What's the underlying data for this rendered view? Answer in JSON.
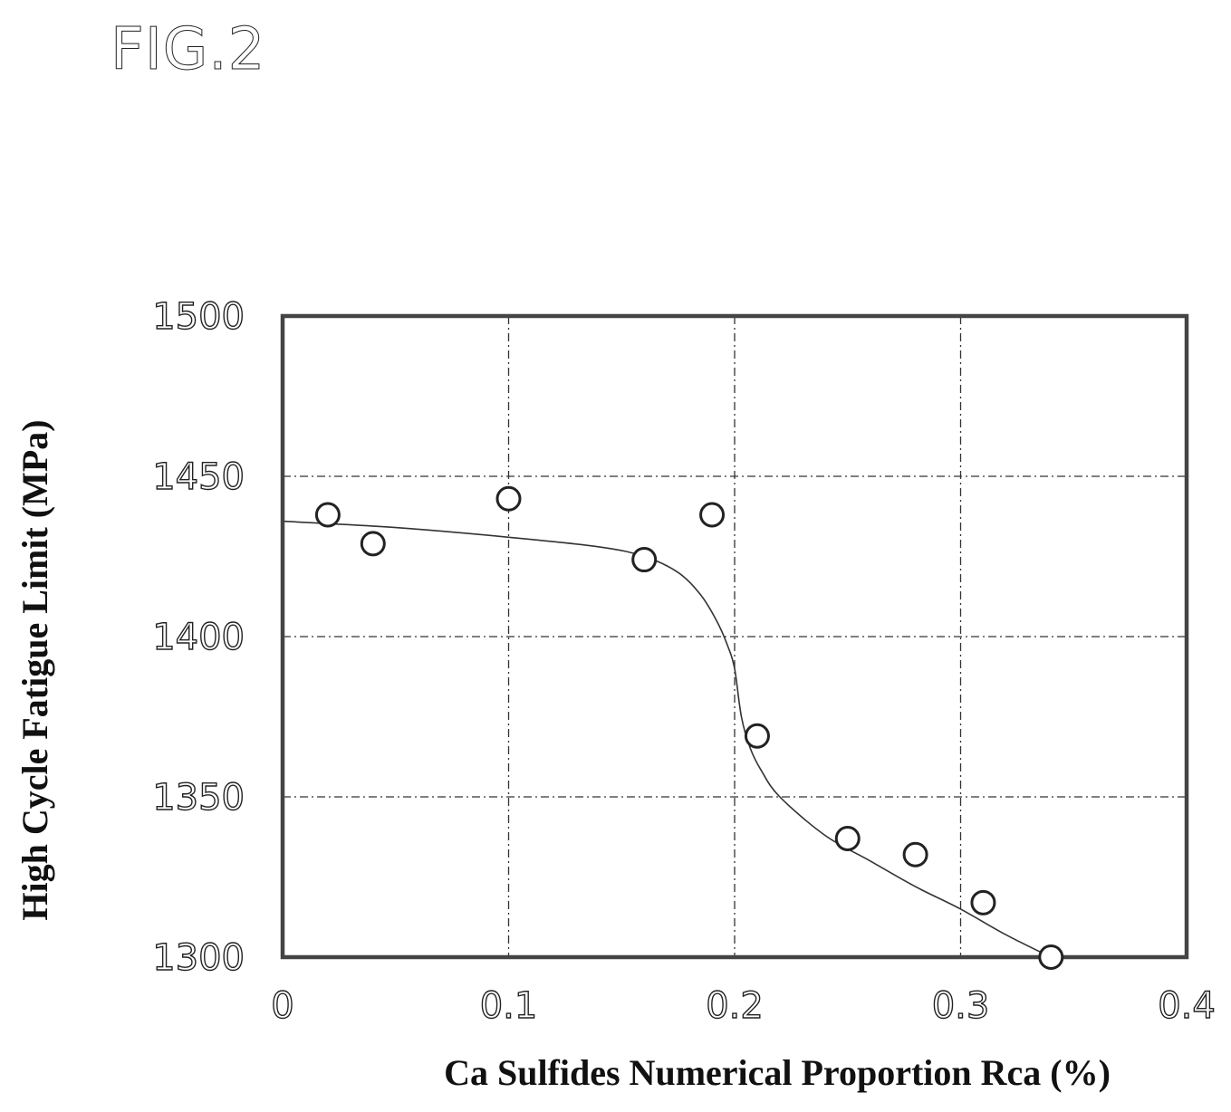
{
  "figure": {
    "label": "FIG.2"
  },
  "chart_data": {
    "type": "scatter",
    "title": "",
    "xlabel": "Ca Sulfides Numerical Proportion Rca (%)",
    "ylabel": "High Cycle Fatigue Limit (MPa)",
    "xlim": [
      0,
      0.4
    ],
    "ylim": [
      1300,
      1500
    ],
    "x_ticks": [
      0,
      0.1,
      0.2,
      0.3,
      0.4
    ],
    "x_tick_labels": [
      "0",
      "0.1",
      "0.2",
      "0.3",
      "0.4"
    ],
    "y_ticks": [
      1300,
      1350,
      1400,
      1450,
      1500
    ],
    "y_tick_labels": [
      "1300",
      "1350",
      "1400",
      "1450",
      "1500"
    ],
    "grid": true,
    "legend": "none",
    "marker": "open-circle",
    "series": [
      {
        "points": [
          {
            "x": 0.02,
            "y": 1438
          },
          {
            "x": 0.04,
            "y": 1429
          },
          {
            "x": 0.1,
            "y": 1443
          },
          {
            "x": 0.16,
            "y": 1424
          },
          {
            "x": 0.19,
            "y": 1438
          },
          {
            "x": 0.21,
            "y": 1369
          },
          {
            "x": 0.25,
            "y": 1337
          },
          {
            "x": 0.28,
            "y": 1332
          },
          {
            "x": 0.31,
            "y": 1317
          },
          {
            "x": 0.34,
            "y": 1300
          }
        ]
      }
    ],
    "trend_line": {
      "style": "thin-solid",
      "points": [
        [
          0.0,
          1436
        ],
        [
          0.05,
          1434
        ],
        [
          0.1,
          1431
        ],
        [
          0.14,
          1428
        ],
        [
          0.16,
          1425
        ],
        [
          0.175,
          1420
        ],
        [
          0.185,
          1413
        ],
        [
          0.192,
          1405
        ],
        [
          0.197,
          1397
        ],
        [
          0.2,
          1390
        ],
        [
          0.203,
          1375
        ],
        [
          0.207,
          1365
        ],
        [
          0.212,
          1358
        ],
        [
          0.22,
          1350
        ],
        [
          0.24,
          1338
        ],
        [
          0.26,
          1330
        ],
        [
          0.28,
          1322
        ],
        [
          0.3,
          1315
        ],
        [
          0.32,
          1307
        ],
        [
          0.34,
          1300
        ]
      ]
    }
  }
}
